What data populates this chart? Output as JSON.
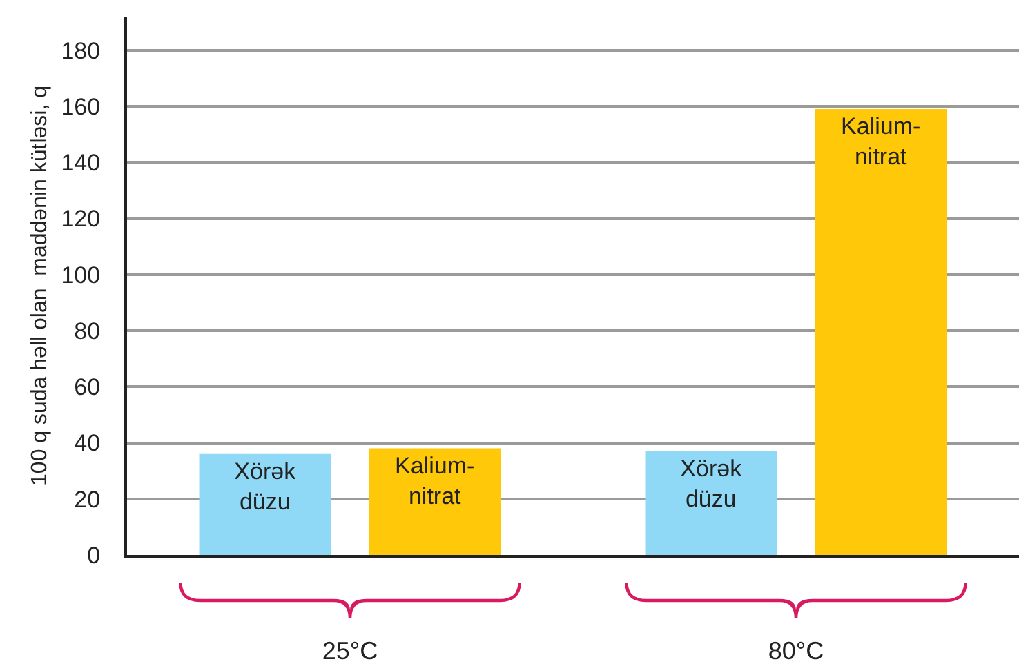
{
  "chart_data": {
    "type": "bar",
    "ylabel": "100 q suda həll olan  maddənin kütləsi, q",
    "categories": [
      "25°C",
      "80°C"
    ],
    "series": [
      {
        "name": "Xörək düzu",
        "color": "#8fd8f6",
        "values": [
          36,
          37
        ]
      },
      {
        "name": "Kalium-nitrat",
        "color": "#ffc90a",
        "values": [
          38,
          159
        ]
      }
    ],
    "ylim": [
      0,
      192
    ],
    "yticks": [
      0,
      20,
      40,
      60,
      80,
      100,
      120,
      140,
      160,
      180
    ],
    "grid": "y",
    "legend": false
  }
}
